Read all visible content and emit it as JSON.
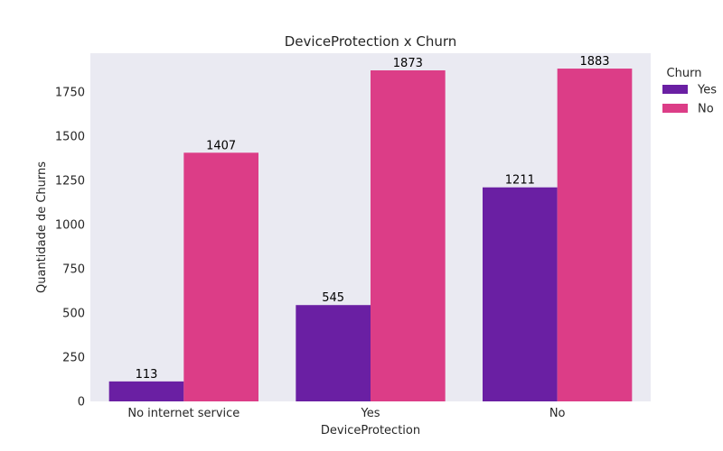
{
  "chart_data": {
    "type": "bar",
    "title": "DeviceProtection x Churn",
    "xlabel": "DeviceProtection",
    "ylabel": "Quantidade de Churns",
    "categories": [
      "No internet service",
      "Yes",
      "No"
    ],
    "series": [
      {
        "name": "Yes",
        "values": [
          113,
          545,
          1211
        ],
        "color": "#6a1fa3"
      },
      {
        "name": "No",
        "values": [
          1407,
          1873,
          1883
        ],
        "color": "#dc3d87"
      }
    ],
    "ylim": [
      0,
      1970
    ],
    "yticks": [
      0,
      250,
      500,
      750,
      1000,
      1250,
      1500,
      1750
    ],
    "grid": false,
    "background": "#eaeaf2",
    "legend": {
      "title": "Churn",
      "position": "outside-top-right"
    }
  }
}
